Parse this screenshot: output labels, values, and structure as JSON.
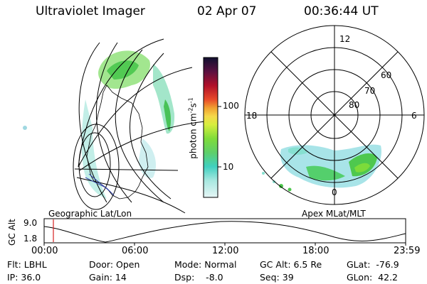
{
  "header": {
    "instrument": "Ultraviolet Imager",
    "date": "02 Apr 07",
    "time": "00:36:44 UT"
  },
  "colorbar": {
    "unit_prefix": "photon cm",
    "unit_exp1": "-2",
    "unit_mid": "s",
    "unit_exp2": "-1",
    "ticks": [
      "100",
      "10"
    ]
  },
  "left_panel": {
    "caption": "Geographic Lat/Lon"
  },
  "right_panel": {
    "caption": "Apex MLat/MLT",
    "mlt_labels": {
      "top": "12",
      "left": "18",
      "right": "6",
      "bottom": "0"
    },
    "lat_labels": [
      "60",
      "70",
      "80"
    ]
  },
  "timeline": {
    "ylabel": "GC Alt",
    "ytick_hi": "9.0",
    "ytick_lo": "1.8",
    "xticks": [
      "00:00",
      "06:00",
      "12:00",
      "18:00",
      "23:59"
    ],
    "marker_hour": 0.61
  },
  "status": {
    "flt": "Flt: LBHL",
    "ip": "IP: 36.0",
    "door": "Door: Open",
    "gain": "Gain: 14",
    "mode": "Mode: Normal",
    "dsp": "Dsp:    -8.0",
    "gcalt": "GC Alt: 6.5 Re",
    "seq": "Seq: 39",
    "glat": "GLat:  -76.9",
    "glon": "GLon:  42.2"
  }
}
